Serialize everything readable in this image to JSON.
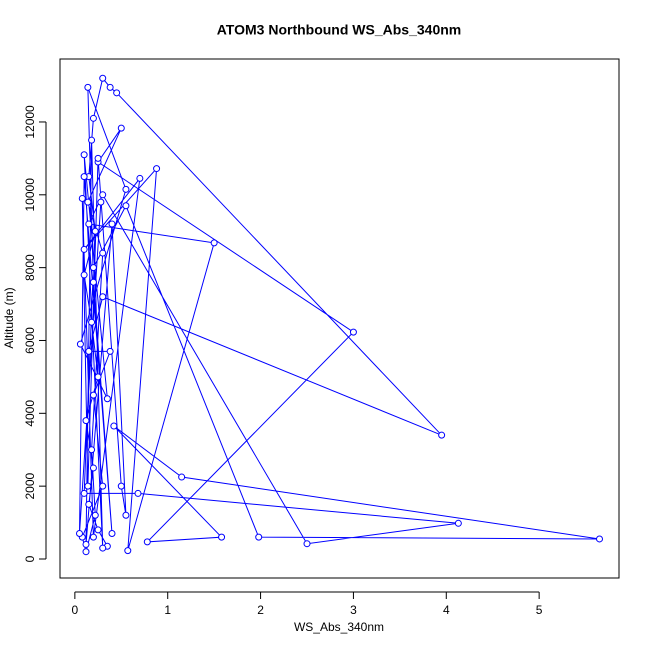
{
  "chart_data": {
    "type": "line",
    "title": "ATOM3 Northbound WS_Abs_340nm",
    "x_label": "WS_Abs_340nm",
    "y_label": "Altitude (m)",
    "color": "#0000ff",
    "xlim": [
      -0.16,
      5.86
    ],
    "ylim": [
      -522,
      13729
    ],
    "xticks": [
      0,
      1,
      2,
      3,
      4,
      5
    ],
    "yticks": [
      0,
      2000,
      4000,
      6000,
      8000,
      10000,
      12000
    ],
    "x": [
      0.35,
      0.25,
      0.15,
      0.2,
      0.12,
      0.25,
      0.18,
      0.1,
      0.22,
      0.15,
      0.2,
      0.3,
      0.38,
      0.45,
      3.95,
      0.3,
      0.15,
      0.38,
      0.2,
      0.3,
      0.08,
      0.12,
      0.22,
      0.18,
      0.3,
      0.14,
      0.5,
      0.25,
      3.0,
      0.78,
      1.58,
      0.42,
      1.15,
      5.65,
      1.98,
      0.55,
      0.2,
      0.1,
      0.68,
      4.13,
      2.5,
      0.3,
      0.15,
      1.5,
      0.57,
      0.88,
      0.1,
      0.7,
      0.2,
      0.08,
      0.14,
      0.25,
      0.5,
      0.55,
      0.4,
      0.12,
      0.18,
      0.3,
      0.1,
      0.35,
      0.06,
      0.55,
      0.14,
      0.2,
      0.4,
      0.1,
      0.05,
      0.28
    ],
    "values": [
      350,
      800,
      1500,
      2500,
      3800,
      5000,
      6500,
      7800,
      9000,
      10500,
      12100,
      13200,
      12950,
      12800,
      3400,
      7200,
      5700,
      5700,
      4500,
      2000,
      600,
      200,
      1200,
      3000,
      8400,
      9800,
      11830,
      10900,
      6230,
      470,
      600,
      3650,
      2250,
      550,
      600,
      9700,
      8000,
      1800,
      1800,
      980,
      420,
      10000,
      9200,
      8680,
      230,
      10720,
      8500,
      10450,
      600,
      9900,
      2000,
      11000,
      2000,
      1200,
      9200,
      400,
      11500,
      300,
      11100,
      4400,
      5900,
      10150,
      12950,
      7600,
      700,
      10500,
      700,
      9800
    ]
  }
}
